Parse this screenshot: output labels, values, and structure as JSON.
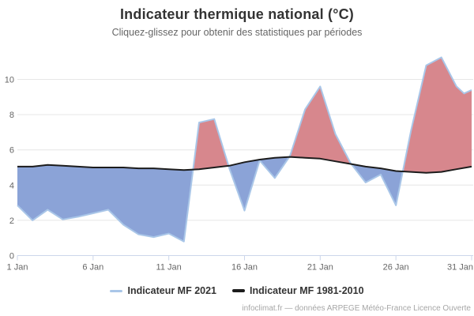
{
  "chart_data": {
    "type": "area",
    "title": "Indicateur thermique national (°C)",
    "subtitle": "Cliquez-glissez pour obtenir des statistiques par périodes",
    "xlabel": "",
    "ylabel": "",
    "ylim": [
      0,
      11.3
    ],
    "y_ticks": [
      0,
      2,
      4,
      6,
      8,
      10
    ],
    "x_ticks": [
      {
        "day": 1,
        "label": "1 Jan"
      },
      {
        "day": 6,
        "label": "6 Jan"
      },
      {
        "day": 11,
        "label": "11 Jan"
      },
      {
        "day": 16,
        "label": "16 Jan"
      },
      {
        "day": 21,
        "label": "21 Jan"
      },
      {
        "day": 26,
        "label": "26 Jan"
      },
      {
        "day": 31,
        "label": "31 Jan"
      }
    ],
    "grid": true,
    "legend_position": "bottom",
    "series": [
      {
        "name": "Indicateur MF 2021",
        "type": "line-with-difference-fill",
        "color": "#a9c6e8",
        "x": [
          1,
          2,
          3,
          4,
          5,
          6,
          7,
          8,
          9,
          10,
          11,
          12,
          13,
          14,
          15,
          16,
          17,
          18,
          19,
          20,
          21,
          22,
          23,
          24,
          25,
          26,
          27,
          28,
          29,
          30,
          30.5,
          31
        ],
        "values": [
          2.85,
          2.0,
          2.6,
          2.05,
          2.2,
          2.4,
          2.6,
          1.75,
          1.2,
          1.05,
          1.25,
          0.8,
          7.55,
          7.75,
          4.95,
          2.55,
          5.4,
          4.4,
          5.65,
          8.3,
          9.6,
          6.9,
          5.25,
          4.15,
          4.6,
          2.85,
          7.1,
          10.8,
          11.25,
          9.6,
          9.2,
          9.4
        ]
      },
      {
        "name": "Indicateur MF 1981-2010",
        "type": "line",
        "color": "#1c1c1c",
        "x": [
          1,
          2,
          3,
          4,
          5,
          6,
          7,
          8,
          9,
          10,
          11,
          12,
          13,
          14,
          15,
          16,
          17,
          18,
          19,
          20,
          21,
          22,
          23,
          24,
          25,
          26,
          27,
          28,
          29,
          30,
          31
        ],
        "values": [
          5.05,
          5.05,
          5.15,
          5.1,
          5.05,
          5.0,
          5.0,
          5.0,
          4.95,
          4.95,
          4.9,
          4.85,
          4.9,
          5.0,
          5.1,
          5.3,
          5.45,
          5.55,
          5.6,
          5.55,
          5.5,
          5.35,
          5.2,
          5.05,
          4.95,
          4.8,
          4.75,
          4.7,
          4.75,
          4.9,
          5.05
        ]
      }
    ],
    "fill_colors": {
      "above_normal": "#d7878d",
      "below_normal": "#8ba3d7"
    },
    "style_colors": {
      "grid": "#e6e6e6",
      "axis": "#ccd6eb",
      "tick_label": "#666666"
    }
  },
  "legend": {
    "item_2021": "Indicateur MF 2021",
    "item_normal": "Indicateur MF 1981-2010"
  },
  "credit": {
    "text": "infoclimat.fr — données ARPEGE Météo-France Licence Ouverte"
  }
}
